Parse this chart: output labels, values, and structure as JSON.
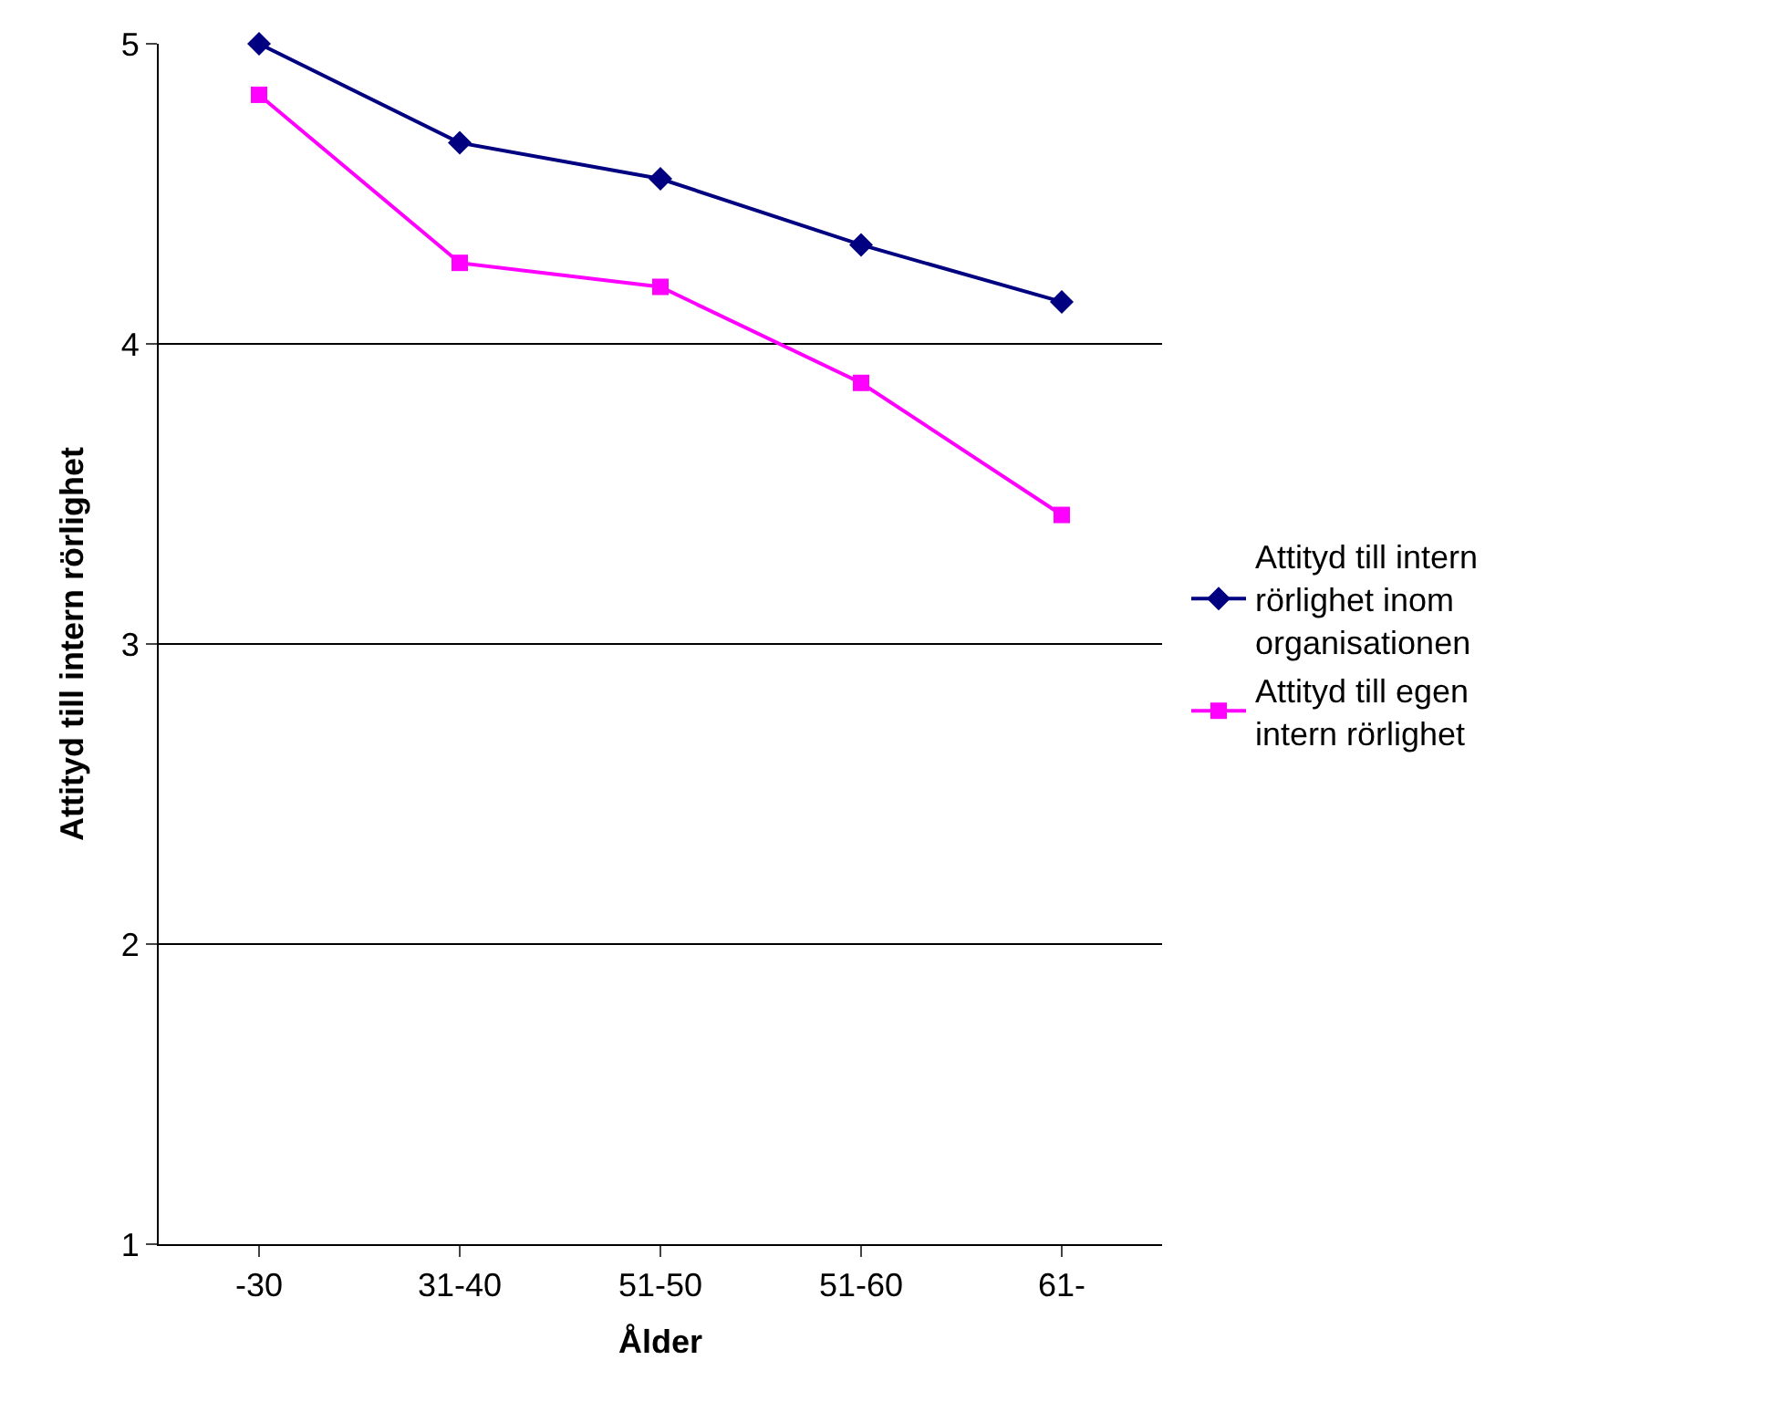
{
  "chart_data": {
    "type": "line",
    "xlabel": "Ålder",
    "ylabel": "Attityd till intern rörlighet",
    "categories": [
      "-30",
      "31-40",
      "51-50",
      "51-60",
      "61-"
    ],
    "series": [
      {
        "name": "Attityd till intern rörlighet inom organisationen",
        "color": "#000080",
        "marker": "diamond",
        "values": [
          5.0,
          4.67,
          4.55,
          4.33,
          4.14
        ]
      },
      {
        "name": "Attityd till egen intern rörlighet",
        "color": "#ff00ff",
        "marker": "square",
        "values": [
          4.83,
          4.27,
          4.19,
          3.87,
          3.43
        ]
      }
    ],
    "ylim": [
      1,
      5
    ],
    "yticks": [
      1,
      2,
      3,
      4,
      5
    ],
    "grid": "y",
    "legend": "right",
    "line_style": "solid"
  }
}
